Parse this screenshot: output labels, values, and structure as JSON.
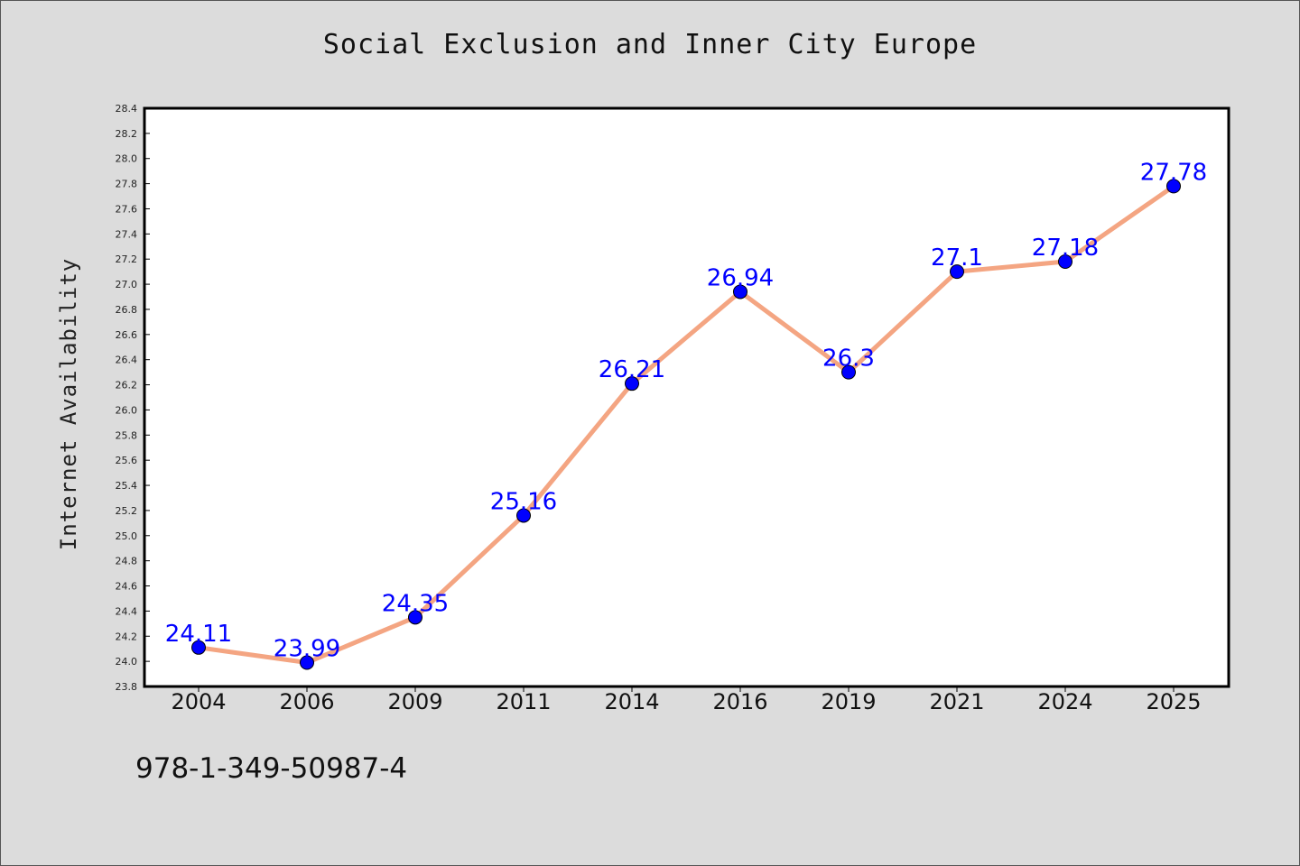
{
  "chart_data": {
    "type": "line",
    "title": "Social Exclusion and Inner City Europe",
    "xlabel": "",
    "ylabel": "Internet Availability",
    "categories": [
      "2004",
      "2006",
      "2009",
      "2011",
      "2014",
      "2016",
      "2019",
      "2021",
      "2024",
      "2025"
    ],
    "values": [
      24.11,
      23.99,
      24.35,
      25.16,
      26.21,
      26.94,
      26.3,
      27.1,
      27.18,
      27.78
    ],
    "data_labels": [
      "24.11",
      "23.99",
      "24.35",
      "25.16",
      "26.21",
      "26.94",
      "26.3",
      "27.1",
      "27.18",
      "27.78"
    ],
    "y_ticks": [
      "23.8",
      "24.0",
      "24.2",
      "24.4",
      "24.6",
      "24.8",
      "25.0",
      "25.2",
      "25.4",
      "25.6",
      "25.8",
      "26.0",
      "26.2",
      "26.4",
      "26.6",
      "26.8",
      "27.0",
      "27.2",
      "27.4",
      "27.6",
      "27.8",
      "28.0",
      "28.2",
      "28.4"
    ],
    "ylim": [
      23.8,
      28.4
    ],
    "grid": false,
    "legend": "none",
    "line_color": "#f4a582",
    "marker_color": "#0000ff",
    "label_color": "#0000ff",
    "background_color": "#dcdcdc",
    "plot_background_color": "#ffffff"
  },
  "footer": {
    "isbn": "978-1-349-50987-4"
  }
}
